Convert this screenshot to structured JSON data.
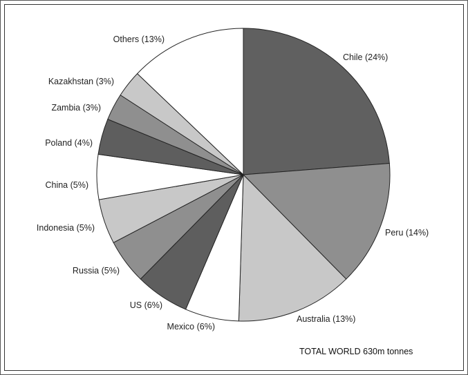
{
  "chart_data": {
    "type": "pie",
    "slices": [
      {
        "label": "Chile  (24%)",
        "value": 24,
        "color": "#606060"
      },
      {
        "label": "Peru (14%)",
        "value": 14,
        "color": "#8f8f8f"
      },
      {
        "label": "Australia (13%)",
        "value": 13,
        "color": "#c8c8c8"
      },
      {
        "label": "Mexico (6%)",
        "value": 6,
        "color": "#ffffff"
      },
      {
        "label": "US (6%)",
        "value": 6,
        "color": "#5e5e5e"
      },
      {
        "label": "Russia (5%)",
        "value": 5,
        "color": "#8f8f8f"
      },
      {
        "label": "Indonesia (5%)",
        "value": 5,
        "color": "#c8c8c8"
      },
      {
        "label": "China (5%)",
        "value": 5,
        "color": "#ffffff"
      },
      {
        "label": "Poland (4%)",
        "value": 4,
        "color": "#5e5e5e"
      },
      {
        "label": "Zambia (3%)",
        "value": 3,
        "color": "#8f8f8f"
      },
      {
        "label": "Kazakhstan (3%)",
        "value": 3,
        "color": "#c8c8c8"
      },
      {
        "label": "Others (13%)",
        "value": 13,
        "color": "#ffffff"
      }
    ],
    "total_label": "TOTAL WORLD 630m tonnes"
  }
}
